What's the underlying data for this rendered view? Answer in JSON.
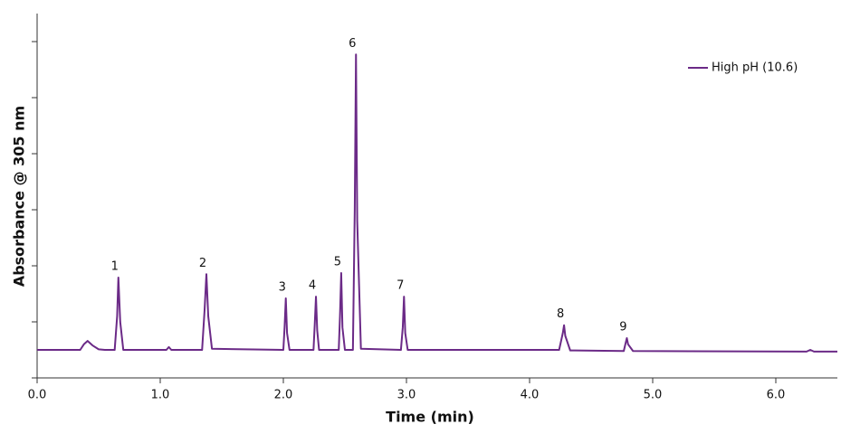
{
  "chart_data": {
    "type": "line",
    "xlabel": "Time (min)",
    "ylabel": "Absorbance @ 305 nm",
    "x": [
      0,
      0.35,
      0.38,
      0.41,
      0.45,
      0.5,
      0.55,
      0.63,
      0.65,
      0.66,
      0.675,
      0.7,
      1.05,
      1.07,
      1.09,
      1.34,
      1.36,
      1.375,
      1.39,
      1.42,
      2.0,
      2.01,
      2.02,
      2.03,
      2.05,
      2.245,
      2.255,
      2.265,
      2.275,
      2.29,
      2.45,
      2.46,
      2.47,
      2.48,
      2.5,
      2.565,
      2.58,
      2.59,
      2.6,
      2.63,
      2.955,
      2.97,
      2.98,
      2.99,
      3.01,
      4.24,
      4.27,
      4.28,
      4.29,
      4.33,
      4.765,
      4.78,
      4.79,
      4.8,
      4.84,
      6.25,
      6.28,
      6.31,
      6.5
    ],
    "series": [
      {
        "name": "High pH (10.6)",
        "color": "#6b2a87",
        "values": [
          0.5,
          0.5,
          0.6,
          0.66,
          0.58,
          0.51,
          0.5,
          0.5,
          1.1,
          1.79,
          1.0,
          0.5,
          0.5,
          0.55,
          0.5,
          0.5,
          1.2,
          1.85,
          1.1,
          0.52,
          0.5,
          0.9,
          1.42,
          0.8,
          0.5,
          0.5,
          0.95,
          1.45,
          0.85,
          0.5,
          0.5,
          1.1,
          1.87,
          0.9,
          0.5,
          0.5,
          3.0,
          5.77,
          2.8,
          0.52,
          0.5,
          0.9,
          1.45,
          0.8,
          0.5,
          0.5,
          0.8,
          0.94,
          0.75,
          0.49,
          0.48,
          0.62,
          0.71,
          0.6,
          0.48,
          0.47,
          0.5,
          0.47,
          0.47
        ]
      }
    ],
    "annotations": [
      {
        "text": "1",
        "x": 0.66,
        "y": 1.79
      },
      {
        "text": "2",
        "x": 1.375,
        "y": 1.85
      },
      {
        "text": "3",
        "x": 2.02,
        "y": 1.42
      },
      {
        "text": "4",
        "x": 2.265,
        "y": 1.45
      },
      {
        "text": "5",
        "x": 2.47,
        "y": 1.87
      },
      {
        "text": "6",
        "x": 2.59,
        "y": 5.77
      },
      {
        "text": "7",
        "x": 2.98,
        "y": 1.45
      },
      {
        "text": "8",
        "x": 4.28,
        "y": 0.94
      },
      {
        "text": "9",
        "x": 4.79,
        "y": 0.71
      }
    ],
    "xlim": [
      0,
      6.5
    ],
    "ylim": [
      0,
      6.5
    ],
    "xticks": [
      {
        "value": 0,
        "label": "0.0"
      },
      {
        "value": 1,
        "label": "1.0"
      },
      {
        "value": 2,
        "label": "2.0"
      },
      {
        "value": 3,
        "label": "3.0"
      },
      {
        "value": 4,
        "label": "4.0"
      },
      {
        "value": 5,
        "label": "5.0"
      },
      {
        "value": 6,
        "label": "6.0"
      }
    ],
    "yticks": [
      0,
      1,
      2,
      3,
      4,
      5,
      6
    ],
    "legend": "upper right",
    "grid": false
  }
}
